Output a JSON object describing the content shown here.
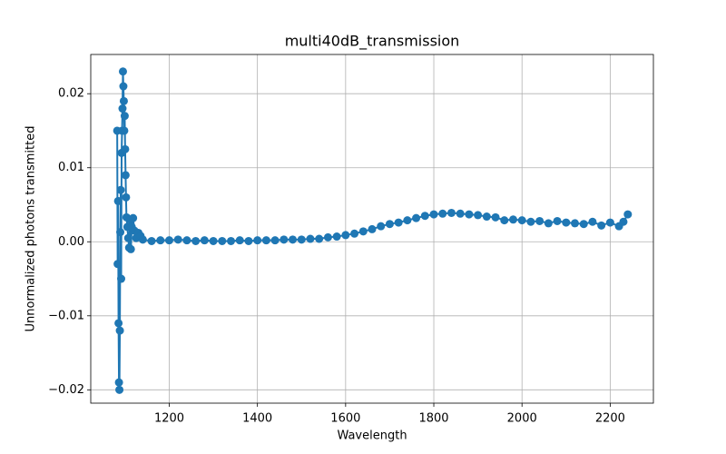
{
  "chart_data": {
    "type": "line",
    "title": "multi40dB_transmission",
    "xlabel": "Wavelength",
    "ylabel": "Unnormalized photons transmitted",
    "color": "#1f77b4",
    "marker": "o",
    "grid": true,
    "xlim": [
      1022,
      2298
    ],
    "xticks": [
      1200,
      1400,
      1600,
      1800,
      2000,
      2200
    ],
    "ylim": [
      -0.0218,
      0.0253
    ],
    "yticks": [
      {
        "value": -0.02,
        "label": "−0.02"
      },
      {
        "value": -0.01,
        "label": "−0.01"
      },
      {
        "value": 0,
        "label": "0.00"
      },
      0.01,
      0.02
    ],
    "x": [
      1082,
      1083,
      1084,
      1085,
      1086,
      1087,
      1088,
      1089,
      1090,
      1091,
      1092,
      1093,
      1094,
      1095,
      1096,
      1097,
      1098,
      1099,
      1100,
      1101,
      1102,
      1103,
      1105,
      1107,
      1109,
      1111,
      1113,
      1115,
      1118,
      1121,
      1125,
      1130,
      1135,
      1140,
      1160,
      1180,
      1200,
      1220,
      1240,
      1260,
      1280,
      1300,
      1320,
      1340,
      1360,
      1380,
      1400,
      1420,
      1440,
      1460,
      1480,
      1500,
      1520,
      1540,
      1560,
      1580,
      1600,
      1620,
      1640,
      1660,
      1680,
      1700,
      1720,
      1740,
      1760,
      1780,
      1800,
      1820,
      1840,
      1860,
      1880,
      1900,
      1920,
      1940,
      1960,
      1980,
      2000,
      2020,
      2040,
      2060,
      2080,
      2100,
      2120,
      2140,
      2160,
      2180,
      2200,
      2220,
      2230,
      2240
    ],
    "values": [
      0.015,
      -0.003,
      0.0055,
      -0.011,
      -0.019,
      -0.02,
      -0.012,
      0.0013,
      0.007,
      -0.005,
      0.012,
      0.015,
      0.018,
      0.023,
      0.021,
      0.019,
      0.015,
      0.017,
      0.0125,
      0.009,
      0.006,
      0.0033,
      0.002,
      0.0005,
      -0.0008,
      0.003,
      -0.001,
      0.002,
      0.0032,
      0.0015,
      0.0005,
      0.0012,
      0.0008,
      0.0003,
      0.0001,
      0.0002,
      0.0002,
      0.0003,
      0.0002,
      0.0001,
      0.0002,
      0.0001,
      0.0001,
      0.0001,
      0.0002,
      0.0001,
      0.0002,
      0.0002,
      0.0002,
      0.0003,
      0.0003,
      0.0003,
      0.0004,
      0.0004,
      0.0006,
      0.0007,
      0.0009,
      0.0011,
      0.0014,
      0.0017,
      0.0021,
      0.0024,
      0.0026,
      0.0029,
      0.0032,
      0.0035,
      0.0037,
      0.0038,
      0.0039,
      0.0038,
      0.0037,
      0.0036,
      0.0034,
      0.0033,
      0.0029,
      0.003,
      0.0029,
      0.0027,
      0.0028,
      0.0025,
      0.0028,
      0.0026,
      0.0025,
      0.0024,
      0.0027,
      0.0022,
      0.0026,
      0.0021,
      0.0027,
      0.0037
    ]
  }
}
